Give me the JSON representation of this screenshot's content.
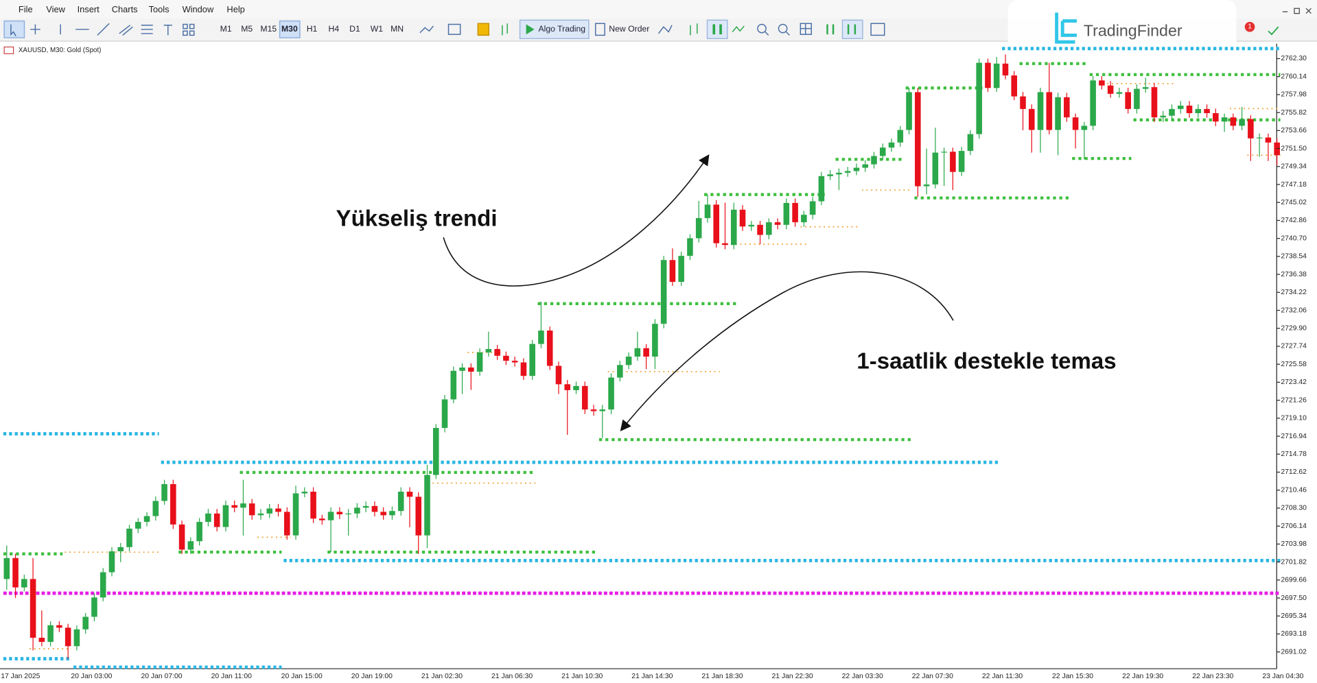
{
  "menu": [
    "File",
    "View",
    "Insert",
    "Charts",
    "Tools",
    "Window",
    "Help"
  ],
  "toolbar": {
    "timeframes": [
      "M1",
      "M5",
      "M15",
      "M30",
      "H1",
      "H4",
      "D1",
      "W1",
      "MN"
    ],
    "active_timeframe": 3,
    "algo_trading": "Algo Trading",
    "new_order": "New Order"
  },
  "logo": "TradingFinder",
  "notification_count": 1,
  "chart_data": {
    "type": "candlestick",
    "symbol_label": "XAUUSD, M30:  Gold (Spot)",
    "up_color": "#2ba84a",
    "down_color": "#e8101a",
    "categories": [
      "17 Jan 2025",
      null,
      null,
      null,
      null,
      null,
      null,
      null,
      "20 Jan 03:00",
      null,
      null,
      null,
      null,
      null,
      null,
      null,
      "20 Jan 07:00",
      null,
      null,
      null,
      null,
      null,
      null,
      null,
      "20 Jan 11:00",
      null,
      null,
      null,
      null,
      null,
      null,
      null,
      "20 Jan 15:00",
      null,
      null,
      null,
      null,
      null,
      null,
      null,
      "20 Jan 19:00",
      null,
      null,
      null,
      null,
      null,
      null,
      null,
      "21 Jan 02:30",
      null,
      null,
      null,
      null,
      null,
      null,
      null,
      "21 Jan 06:30",
      null,
      null,
      null,
      null,
      null,
      null,
      null,
      "21 Jan 10:30",
      null,
      null,
      null,
      null,
      null,
      null,
      null,
      "21 Jan 14:30",
      null,
      null,
      null,
      null,
      null,
      null,
      null,
      "21 Jan 18:30",
      null,
      null,
      null,
      null,
      null,
      null,
      null,
      "21 Jan 22:30",
      null,
      null,
      null,
      null,
      null,
      null,
      null,
      "22 Jan 03:30",
      null,
      null,
      null,
      null,
      null,
      null,
      null,
      "22 Jan 07:30",
      null,
      null,
      null,
      null,
      null,
      null,
      null,
      "22 Jan 11:30",
      null,
      null,
      null,
      null,
      null,
      null,
      null,
      "22 Jan 15:30",
      null,
      null,
      null,
      null,
      null,
      null,
      null,
      "22 Jan 19:30",
      null,
      null,
      null,
      null,
      null,
      null,
      null,
      "22 Jan 23:30",
      null,
      null,
      null,
      null,
      null,
      null,
      null,
      "23 Jan 04:30",
      null
    ],
    "open": [
      2699.78,
      2702.3,
      2698.77,
      2699.78,
      2692.72,
      2692.22,
      2694.23,
      2693.93,
      2691.71,
      2693.73,
      2695.24,
      2697.56,
      2700.59,
      2703.11,
      2703.61,
      2705.83,
      2706.64,
      2707.34,
      2709.16,
      2711.18,
      2706.33,
      2703.31,
      2704.32,
      2706.64,
      2707.65,
      2706.03,
      2708.65,
      2708.35,
      2708.86,
      2707.44,
      2707.65,
      2708.25,
      2707.85,
      2705.02,
      2710.07,
      2710.27,
      2707.04,
      2706.84,
      2707.85,
      2707.55,
      2707.65,
      2708.35,
      2708.55,
      2707.85,
      2707.44,
      2707.95,
      2710.27,
      2709.66,
      2705.02,
      2712.28,
      2717.93,
      2721.36,
      2724.79,
      2725.19,
      2724.69,
      2727.01,
      2727.41,
      2726.6,
      2726.0,
      2725.8,
      2724.18,
      2728.02,
      2729.63,
      2725.39,
      2723.18,
      2722.47,
      2722.97,
      2720.15,
      2719.95,
      2720.15,
      2723.98,
      2725.49,
      2726.5,
      2727.51,
      2726.5,
      2730.44,
      2738.1,
      2735.48,
      2738.6,
      2740.72,
      2743.14,
      2744.76,
      2740.12,
      2739.91,
      2744.15,
      2742.13,
      2742.33,
      2741.12,
      2742.64,
      2742.33,
      2744.96,
      2742.64,
      2743.54,
      2745.16,
      2748.18,
      2748.39,
      2748.59,
      2748.79,
      2749.19,
      2749.6,
      2750.6,
      2751.61,
      2752.22,
      2753.73,
      2758.27,
      2746.97,
      2747.18,
      2751.01,
      2751.11,
      2748.69,
      2751.21,
      2753.23,
      2761.8,
      2758.77,
      2761.7,
      2760.28,
      2757.76,
      2756.25,
      2753.73,
      2758.27,
      2753.73,
      2757.66,
      2755.24,
      2753.73,
      2754.23,
      2759.68,
      2759.07,
      2758.07,
      2758.27,
      2756.25,
      2758.67,
      2758.87,
      2755.24,
      2755.44,
      2756.25,
      2756.65,
      2755.75,
      2756.25,
      2755.75,
      2754.74,
      2755.24,
      2754.23,
      2755.04,
      2752.72,
      2752.82,
      2752.22
    ],
    "high": [
      2703.8,
      2702.8,
      2700.3,
      2702.3,
      2696.0,
      2694.7,
      2694.7,
      2694.4,
      2694.2,
      2695.7,
      2698.1,
      2701.1,
      2703.6,
      2704.1,
      2706.3,
      2707.1,
      2707.8,
      2709.7,
      2711.7,
      2711.7,
      2706.8,
      2704.8,
      2707.1,
      2708.2,
      2708.2,
      2709.2,
      2709.2,
      2711.7,
      2709.4,
      2708.2,
      2708.8,
      2708.8,
      2708.4,
      2711.0,
      2710.8,
      2710.8,
      2707.5,
      2708.4,
      2708.4,
      2708.2,
      2708.9,
      2709.1,
      2709.1,
      2708.4,
      2708.5,
      2710.8,
      2710.8,
      2710.2,
      2713.5,
      2718.4,
      2721.9,
      2725.3,
      2725.7,
      2725.7,
      2727.5,
      2729.5,
      2727.9,
      2727.1,
      2726.5,
      2726.3,
      2728.5,
      2733.1,
      2730.1,
      2725.9,
      2723.7,
      2723.5,
      2723.5,
      2720.7,
      2720.7,
      2724.5,
      2726.0,
      2727.0,
      2729.5,
      2728.0,
      2731.0,
      2738.6,
      2739.5,
      2739.1,
      2741.2,
      2745.2,
      2746.0,
      2745.3,
      2745.0,
      2745.0,
      2744.7,
      2742.8,
      2742.8,
      2743.1,
      2743.1,
      2745.5,
      2745.5,
      2744.0,
      2745.7,
      2748.7,
      2748.9,
      2749.1,
      2749.3,
      2749.7,
      2750.1,
      2751.1,
      2752.1,
      2752.7,
      2754.2,
      2758.8,
      2758.8,
      2751.5,
      2754.0,
      2751.6,
      2751.6,
      2751.7,
      2753.7,
      2762.3,
      2762.3,
      2762.5,
      2762.8,
      2760.8,
      2758.3,
      2756.8,
      2758.8,
      2761.8,
      2758.2,
      2758.2,
      2755.7,
      2754.7,
      2760.2,
      2760.2,
      2759.6,
      2758.8,
      2758.8,
      2759.2,
      2760.0,
      2759.4,
      2756.0,
      2756.8,
      2757.2,
      2757.2,
      2756.8,
      2756.8,
      2756.3,
      2755.7,
      2755.7,
      2756.5,
      2755.5,
      2753.3,
      2753.3,
      2752.7
    ],
    "low": [
      2698.5,
      2697.5,
      2698.3,
      2691.2,
      2691.7,
      2691.7,
      2693.4,
      2690.2,
      2691.2,
      2693.2,
      2694.7,
      2697.1,
      2700.1,
      2701.8,
      2703.1,
      2705.3,
      2706.1,
      2706.8,
      2708.7,
      2705.8,
      2702.8,
      2702.8,
      2703.8,
      2706.1,
      2705.5,
      2705.5,
      2707.8,
      2705.0,
      2706.9,
      2706.9,
      2707.1,
      2707.3,
      2704.5,
      2704.5,
      2709.6,
      2706.5,
      2706.3,
      2703.0,
      2707.0,
      2705.0,
      2707.1,
      2707.8,
      2707.3,
      2706.9,
      2706.9,
      2707.4,
      2706.0,
      2702.8,
      2703.5,
      2711.8,
      2717.4,
      2720.9,
      2722.0,
      2722.5,
      2724.2,
      2726.5,
      2726.1,
      2725.5,
      2725.3,
      2723.7,
      2723.7,
      2727.5,
      2724.9,
      2722.0,
      2717.1,
      2722.0,
      2719.6,
      2719.4,
      2716.7,
      2719.6,
      2723.5,
      2725.0,
      2726.0,
      2725.0,
      2725.0,
      2729.9,
      2735.0,
      2735.0,
      2738.1,
      2740.2,
      2742.6,
      2739.6,
      2739.4,
      2739.4,
      2741.6,
      2741.6,
      2740.0,
      2740.6,
      2741.8,
      2741.8,
      2742.1,
      2742.1,
      2743.0,
      2744.7,
      2747.7,
      2746.5,
      2748.1,
      2748.3,
      2748.7,
      2749.1,
      2750.1,
      2751.1,
      2751.7,
      2753.2,
      2745.7,
      2746.0,
      2746.7,
      2747.0,
      2746.5,
      2748.2,
      2750.7,
      2752.7,
      2758.3,
      2758.3,
      2759.8,
      2757.3,
      2753.7,
      2751.0,
      2751.0,
      2753.2,
      2750.7,
      2754.7,
      2751.5,
      2750.2,
      2753.7,
      2758.6,
      2757.6,
      2757.6,
      2755.7,
      2755.7,
      2758.2,
      2754.7,
      2754.7,
      2754.9,
      2755.7,
      2755.2,
      2755.2,
      2755.2,
      2754.2,
      2753.5,
      2753.7,
      2753.7,
      2750.0,
      2750.5,
      2750.0,
      2749.5
    ],
    "close": [
      2702.3,
      2698.77,
      2699.78,
      2692.72,
      2692.22,
      2694.23,
      2693.93,
      2691.71,
      2693.73,
      2695.24,
      2697.56,
      2700.59,
      2703.11,
      2703.61,
      2705.83,
      2706.64,
      2707.34,
      2709.16,
      2711.18,
      2706.33,
      2703.31,
      2704.32,
      2706.64,
      2707.65,
      2706.03,
      2708.65,
      2708.35,
      2708.86,
      2707.44,
      2707.65,
      2708.25,
      2707.85,
      2705.02,
      2710.07,
      2710.27,
      2707.04,
      2706.84,
      2707.85,
      2707.55,
      2707.65,
      2708.35,
      2708.55,
      2707.85,
      2707.44,
      2707.95,
      2710.27,
      2709.66,
      2705.02,
      2712.28,
      2717.93,
      2721.36,
      2724.79,
      2725.19,
      2724.69,
      2727.01,
      2727.41,
      2726.6,
      2726.0,
      2725.8,
      2724.18,
      2728.02,
      2729.63,
      2725.39,
      2723.18,
      2722.47,
      2722.97,
      2720.15,
      2719.95,
      2720.15,
      2723.98,
      2725.49,
      2726.5,
      2727.51,
      2726.5,
      2730.44,
      2738.1,
      2735.48,
      2738.6,
      2740.72,
      2743.14,
      2744.76,
      2740.12,
      2739.91,
      2744.15,
      2742.13,
      2742.33,
      2741.12,
      2742.64,
      2742.33,
      2744.96,
      2742.64,
      2743.54,
      2745.16,
      2748.18,
      2748.39,
      2748.59,
      2748.79,
      2749.19,
      2749.6,
      2750.6,
      2751.61,
      2752.22,
      2753.73,
      2758.27,
      2746.97,
      2747.18,
      2751.01,
      2751.11,
      2748.69,
      2751.21,
      2753.23,
      2761.8,
      2758.77,
      2761.7,
      2760.28,
      2757.76,
      2756.25,
      2753.73,
      2758.27,
      2753.73,
      2757.66,
      2755.24,
      2753.73,
      2754.23,
      2759.68,
      2759.07,
      2758.07,
      2758.27,
      2756.25,
      2758.67,
      2758.87,
      2755.24,
      2755.44,
      2756.25,
      2756.65,
      2755.75,
      2756.25,
      2755.75,
      2754.74,
      2755.24,
      2754.23,
      2755.04,
      2752.72,
      2752.82,
      2752.22,
      2750.7
    ],
    "ylim": [
      2689.0,
      2764.1
    ],
    "yticks": [
      {
        "value": 2762.3,
        "label": "2762.30"
      },
      2760.14,
      2757.98,
      2755.82,
      2753.66,
      {
        "value": 2751.5,
        "label": "2751.50"
      },
      2749.34,
      2747.18,
      2745.02,
      2742.86,
      {
        "value": 2740.7,
        "label": "2740.70"
      },
      2738.54,
      2736.38,
      2734.22,
      2732.06,
      {
        "value": 2729.9,
        "label": "2729.90"
      },
      2727.74,
      2725.58,
      2723.42,
      2721.26,
      {
        "value": 2719.1,
        "label": "2719.10"
      },
      2716.94,
      2714.78,
      2712.62,
      2710.46,
      {
        "value": 2708.3,
        "label": "2708.30"
      },
      2706.14,
      2703.98,
      2701.82,
      2699.66,
      {
        "value": 2697.5,
        "label": "2697.50"
      },
      2695.34,
      2693.18,
      2691.02
    ],
    "levels": [
      {
        "value": 2717.23,
        "from": 0,
        "to": 17,
        "color": "#29b6e3",
        "marker": "diamond"
      },
      {
        "value": 2713.8,
        "from": 18,
        "to": 113,
        "color": "#29b6e3",
        "marker": "diamond"
      },
      {
        "value": 2702.0,
        "from": 32,
        "to": 145,
        "color": "#29b6e3",
        "marker": "diamond"
      },
      {
        "value": 2689.19,
        "from": 8,
        "to": 31,
        "color": "#29b6e3",
        "marker": "diamond"
      },
      {
        "value": 2690.2,
        "from": 0,
        "to": 7,
        "color": "#29b6e3",
        "marker": "diamond"
      },
      {
        "value": 2763.51,
        "from": 114,
        "to": 145,
        "color": "#29b6e3",
        "marker": "diamond"
      },
      {
        "value": 2702.8,
        "from": 0,
        "to": 6,
        "color": "#3dbf3d",
        "marker": "square"
      },
      {
        "value": 2703.01,
        "from": 20,
        "to": 31,
        "color": "#3dbf3d",
        "marker": "square"
      },
      {
        "value": 2703.01,
        "from": 37,
        "to": 67,
        "color": "#3dbf3d",
        "marker": "square"
      },
      {
        "value": 2712.59,
        "from": 27,
        "to": 60,
        "color": "#3dbf3d",
        "marker": "square"
      },
      {
        "value": 2732.86,
        "from": 61,
        "to": 83,
        "color": "#3dbf3d",
        "marker": "square"
      },
      {
        "value": 2716.52,
        "from": 68,
        "to": 103,
        "color": "#3dbf3d",
        "marker": "square"
      },
      {
        "value": 2745.97,
        "from": 80,
        "to": 93,
        "color": "#3dbf3d",
        "marker": "square"
      },
      {
        "value": 2750.2,
        "from": 95,
        "to": 102,
        "color": "#3dbf3d",
        "marker": "square"
      },
      {
        "value": 2758.77,
        "from": 103,
        "to": 111,
        "color": "#3dbf3d",
        "marker": "square"
      },
      {
        "value": 2745.56,
        "from": 104,
        "to": 121,
        "color": "#3dbf3d",
        "marker": "square"
      },
      {
        "value": 2761.7,
        "from": 116,
        "to": 123,
        "color": "#3dbf3d",
        "marker": "square"
      },
      {
        "value": 2760.38,
        "from": 124,
        "to": 145,
        "color": "#3dbf3d",
        "marker": "square"
      },
      {
        "value": 2754.94,
        "from": 129,
        "to": 145,
        "color": "#3dbf3d",
        "marker": "square"
      },
      {
        "value": 2750.3,
        "from": 122,
        "to": 128,
        "color": "#3dbf3d",
        "marker": "square"
      },
      {
        "value": 2703.0,
        "from": 7,
        "to": 17,
        "color": "#f0a030",
        "marker": "dot"
      },
      {
        "value": 2704.8,
        "from": 29,
        "to": 32,
        "color": "#f0a030",
        "marker": "dot"
      },
      {
        "value": 2711.3,
        "from": 49,
        "to": 60,
        "color": "#f0a030",
        "marker": "dot"
      },
      {
        "value": 2727.0,
        "from": 53,
        "to": 56,
        "color": "#f0a030",
        "marker": "dot"
      },
      {
        "value": 2724.7,
        "from": 69,
        "to": 81,
        "color": "#f0a030",
        "marker": "dot"
      },
      {
        "value": 2740.0,
        "from": 82,
        "to": 91,
        "color": "#f0a030",
        "marker": "dot"
      },
      {
        "value": 2742.1,
        "from": 91,
        "to": 97,
        "color": "#f0a030",
        "marker": "dot"
      },
      {
        "value": 2746.5,
        "from": 98,
        "to": 103,
        "color": "#f0a030",
        "marker": "dot"
      },
      {
        "value": 2759.3,
        "from": 126,
        "to": 133,
        "color": "#f0a030",
        "marker": "dot"
      },
      {
        "value": 2756.3,
        "from": 140,
        "to": 145,
        "color": "#f0a030",
        "marker": "dot"
      },
      {
        "value": 2750.7,
        "from": 142,
        "to": 145,
        "color": "#f0a030",
        "marker": "dot"
      },
      {
        "value": 2691.4,
        "from": 3,
        "to": 7,
        "color": "#f0a030",
        "marker": "dot"
      },
      {
        "value": 2698.07,
        "from": 0,
        "to": 145,
        "color": "#e61ee6",
        "marker": "star"
      }
    ],
    "annotations": [
      "Yükseliş trendi",
      "1-saatlik destekle temas"
    ]
  }
}
